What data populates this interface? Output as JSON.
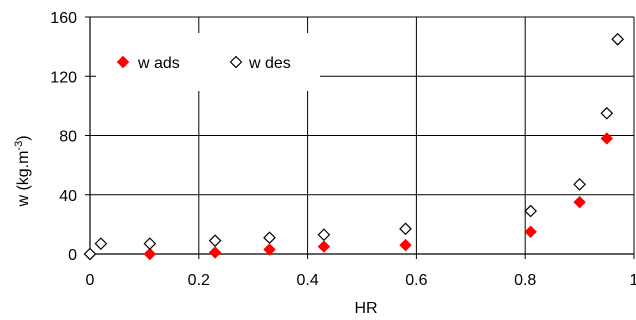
{
  "chart_data": {
    "type": "scatter",
    "xlabel": "HR",
    "ylabel": "w (kg.m",
    "ylabel_superscript": "-3",
    "ylabel_suffix": ")",
    "xlim": [
      0,
      1
    ],
    "ylim": [
      0,
      160
    ],
    "x_ticks": [
      0,
      0.2,
      0.4,
      0.6,
      0.8,
      1
    ],
    "x_tick_labels": [
      "0",
      "0.2",
      "0.4",
      "0.6",
      "0.8",
      "1"
    ],
    "y_ticks": [
      0,
      40,
      80,
      120,
      160
    ],
    "y_tick_labels": [
      "0",
      "40",
      "80",
      "120",
      "160"
    ],
    "grid": true,
    "legend_position": "top-left",
    "series": [
      {
        "name": "w ads",
        "marker": "filled-diamond",
        "color": "#ff0000",
        "points": [
          [
            0.0,
            0
          ],
          [
            0.11,
            0
          ],
          [
            0.23,
            1
          ],
          [
            0.33,
            3
          ],
          [
            0.43,
            5
          ],
          [
            0.58,
            6
          ],
          [
            0.81,
            15
          ],
          [
            0.9,
            35
          ],
          [
            0.95,
            78
          ],
          [
            0.97,
            145
          ]
        ]
      },
      {
        "name": "w des",
        "marker": "hollow-diamond",
        "color": "#000000",
        "points": [
          [
            0.0,
            0
          ],
          [
            0.02,
            7
          ],
          [
            0.11,
            7
          ],
          [
            0.23,
            9
          ],
          [
            0.33,
            11
          ],
          [
            0.43,
            13
          ],
          [
            0.58,
            17
          ],
          [
            0.81,
            29
          ],
          [
            0.9,
            47
          ],
          [
            0.95,
            95
          ],
          [
            0.97,
            145
          ]
        ]
      }
    ]
  }
}
